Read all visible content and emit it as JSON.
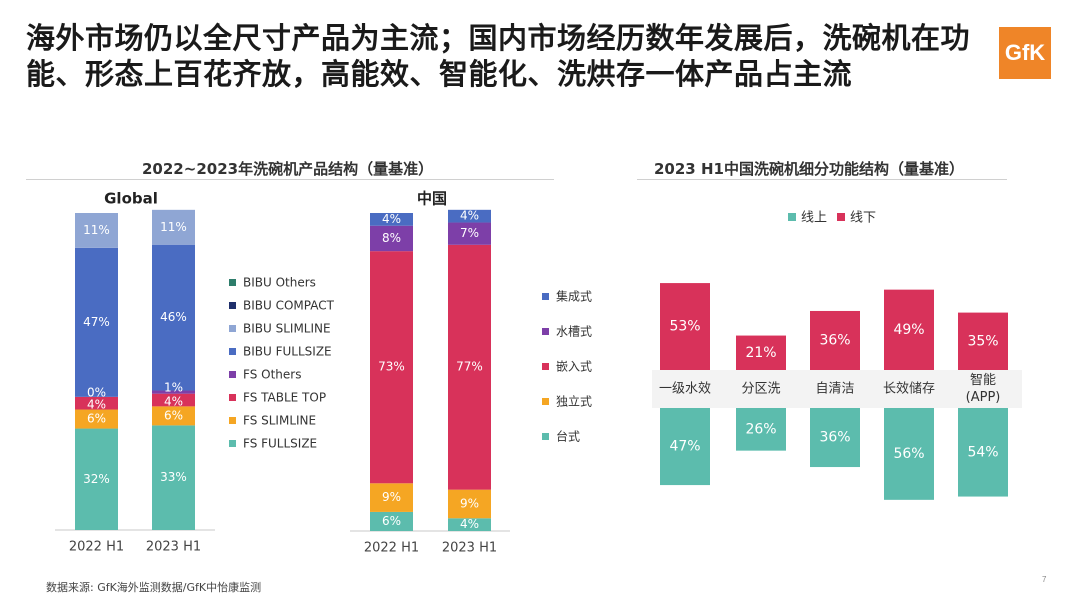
{
  "headline": "海外市场仍以全尺寸产品为主流；国内市场经历数年发展后，洗碗机在功能、形态上百花齐放，高能效、智能化、洗烘存一体产品占主流",
  "logo_text": "GfK",
  "left_section_title": "2022~2023年洗碗机产品结构（量基准）",
  "right_section_title": "2023 H1中国洗碗机细分功能结构（量基准）",
  "source_text": "数据来源: GfK海外监测数据/GfK中怡康监测",
  "page_number": "7",
  "colors": {
    "BIBU Others": "#2e7d6b",
    "BIBU COMPACT": "#1f2f6b",
    "BIBU SLIMLINE": "#8fa6d4",
    "BIBU FULLSIZE": "#4a6cc2",
    "FS Others": "#7d3fa8",
    "FS TABLE TOP": "#d8325a",
    "FS SLIMLINE": "#f5a623",
    "FS FULLSIZE": "#5cbcad",
    "集成式": "#4a6cc2",
    "水槽式": "#7d3fa8",
    "嵌入式": "#d8325a",
    "独立式": "#f5a623",
    "台式": "#5cbcad",
    "线上": "#5cbcad",
    "线下": "#d8325a"
  },
  "chart_data": [
    {
      "type": "bar",
      "stacked": true,
      "title": "Global",
      "categories": [
        "2022 H1",
        "2023 H1"
      ],
      "series": [
        {
          "name": "FS FULLSIZE",
          "values": [
            32,
            33
          ],
          "labels": [
            "32%",
            "33%"
          ]
        },
        {
          "name": "FS SLIMLINE",
          "values": [
            6,
            6
          ],
          "labels": [
            "6%",
            "6%"
          ]
        },
        {
          "name": "FS TABLE TOP",
          "values": [
            4,
            4
          ],
          "labels": [
            "4%",
            "4%"
          ]
        },
        {
          "name": "FS Others",
          "values": [
            0,
            1
          ],
          "labels": [
            "0%",
            "1%"
          ]
        },
        {
          "name": "BIBU FULLSIZE",
          "values": [
            47,
            46
          ],
          "labels": [
            "47%",
            "46%"
          ]
        },
        {
          "name": "BIBU SLIMLINE",
          "values": [
            11,
            11
          ],
          "labels": [
            "11%",
            "11%"
          ]
        },
        {
          "name": "BIBU COMPACT",
          "values": [
            0,
            0
          ],
          "labels": [
            "",
            ""
          ]
        },
        {
          "name": "BIBU Others",
          "values": [
            0,
            0
          ],
          "labels": [
            "",
            ""
          ]
        }
      ],
      "legend": [
        "BIBU Others",
        "BIBU COMPACT",
        "BIBU SLIMLINE",
        "BIBU FULLSIZE",
        "FS Others",
        "FS TABLE TOP",
        "FS SLIMLINE",
        "FS FULLSIZE"
      ]
    },
    {
      "type": "bar",
      "stacked": true,
      "title": "中国",
      "categories": [
        "2022 H1",
        "2023 H1"
      ],
      "series": [
        {
          "name": "台式",
          "values": [
            6,
            4
          ],
          "labels": [
            "6%",
            "4%"
          ]
        },
        {
          "name": "独立式",
          "values": [
            9,
            9
          ],
          "labels": [
            "9%",
            "9%"
          ]
        },
        {
          "name": "嵌入式",
          "values": [
            73,
            77
          ],
          "labels": [
            "73%",
            "77%"
          ]
        },
        {
          "name": "水槽式",
          "values": [
            8,
            7
          ],
          "labels": [
            "8%",
            "7%"
          ]
        },
        {
          "name": "集成式",
          "values": [
            4,
            4
          ],
          "labels": [
            "4%",
            "4%"
          ]
        }
      ],
      "legend": [
        "集成式",
        "水槽式",
        "嵌入式",
        "独立式",
        "台式"
      ]
    },
    {
      "type": "bar",
      "stacked": true,
      "title": "2023 H1中国洗碗机细分功能结构（量基准）",
      "categories": [
        "一级水效",
        "分区洗",
        "自清洁",
        "长效储存",
        "智能\n(APP)"
      ],
      "category_lines": [
        [
          "一级水效"
        ],
        [
          "分区洗"
        ],
        [
          "自清洁"
        ],
        [
          "长效储存"
        ],
        [
          "智能",
          "(APP)"
        ]
      ],
      "series": [
        {
          "name": "线上",
          "values": [
            47,
            26,
            36,
            56,
            54
          ],
          "labels": [
            "47%",
            "26%",
            "36%",
            "56%",
            "54%"
          ]
        },
        {
          "name": "线下",
          "values": [
            53,
            21,
            36,
            49,
            35
          ],
          "labels": [
            "53%",
            "21%",
            "36%",
            "49%",
            "35%"
          ]
        }
      ],
      "legend": [
        "线上",
        "线下"
      ]
    }
  ]
}
